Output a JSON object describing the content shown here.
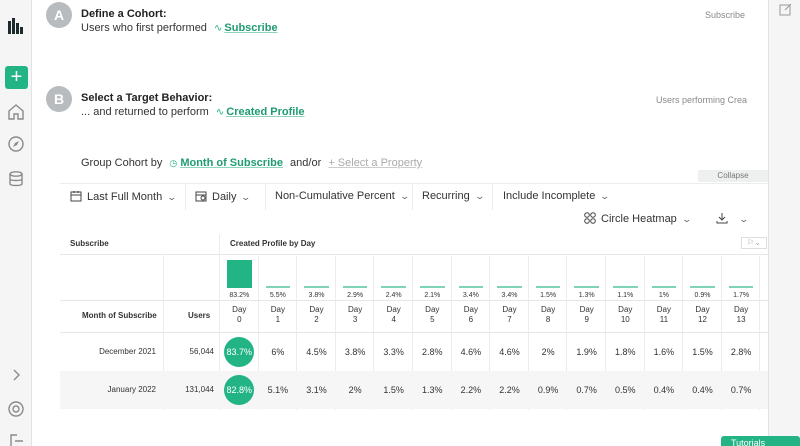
{
  "step_a": {
    "badge": "A",
    "title": "Define a Cohort:",
    "prefix": "Users who first performed",
    "event": "Subscribe",
    "right_label": "Subscribe"
  },
  "step_b": {
    "badge": "B",
    "title": "Select a Target Behavior:",
    "prefix": "... and returned to perform",
    "event": "Created Profile",
    "right_label": "Users performing Crea"
  },
  "group": {
    "prefix": "Group Cohort by",
    "property": "Month of Subscribe",
    "andor": "and/or",
    "add_property": "+ Select a Property"
  },
  "collapse_label": "Collapse",
  "toolbar": {
    "date_range": "Last Full Month",
    "interval": "Daily",
    "measure": "Non-Cumulative Percent",
    "recurring": "Recurring",
    "incomplete": "Include Incomplete",
    "viz": "Circle Heatmap"
  },
  "table": {
    "left_header": "Subscribe",
    "right_header": "Created Profile by Day",
    "row_header_label": "Month of Subscribe",
    "users_header": "Users",
    "days": [
      {
        "top": "Day",
        "num": "0"
      },
      {
        "top": "Day",
        "num": "1"
      },
      {
        "top": "Day",
        "num": "2"
      },
      {
        "top": "Day",
        "num": "3"
      },
      {
        "top": "Day",
        "num": "4"
      },
      {
        "top": "Day",
        "num": "5"
      },
      {
        "top": "Day",
        "num": "6"
      },
      {
        "top": "Day",
        "num": "7"
      },
      {
        "top": "Day",
        "num": "8"
      },
      {
        "top": "Day",
        "num": "9"
      },
      {
        "top": "Day",
        "num": "10"
      },
      {
        "top": "Day",
        "num": "11"
      },
      {
        "top": "Day",
        "num": "12"
      },
      {
        "top": "Day",
        "num": "13"
      }
    ],
    "totals": [
      "83.2%",
      "5.5%",
      "3.8%",
      "2.9%",
      "2.4%",
      "2.1%",
      "3.4%",
      "3.4%",
      "1.5%",
      "1.3%",
      "1.1%",
      "1%",
      "0.9%",
      "1.7%"
    ],
    "rows": [
      {
        "name": "December 2021",
        "users": "56,044",
        "values": [
          "83.7%",
          "6%",
          "4.5%",
          "3.8%",
          "3.3%",
          "2.8%",
          "4.6%",
          "4.6%",
          "2%",
          "1.9%",
          "1.8%",
          "1.6%",
          "1.5%",
          "2.8%"
        ]
      },
      {
        "name": "January 2022",
        "users": "131,044",
        "values": [
          "82.8%",
          "5.1%",
          "3.1%",
          "2%",
          "1.5%",
          "1.3%",
          "2.2%",
          "2.2%",
          "0.9%",
          "0.7%",
          "0.5%",
          "0.4%",
          "0.4%",
          "0.7%"
        ]
      }
    ]
  },
  "bottom_button": "Tutorials",
  "colors": {
    "accent": "#23b486",
    "badge": "#b8bcbf"
  }
}
